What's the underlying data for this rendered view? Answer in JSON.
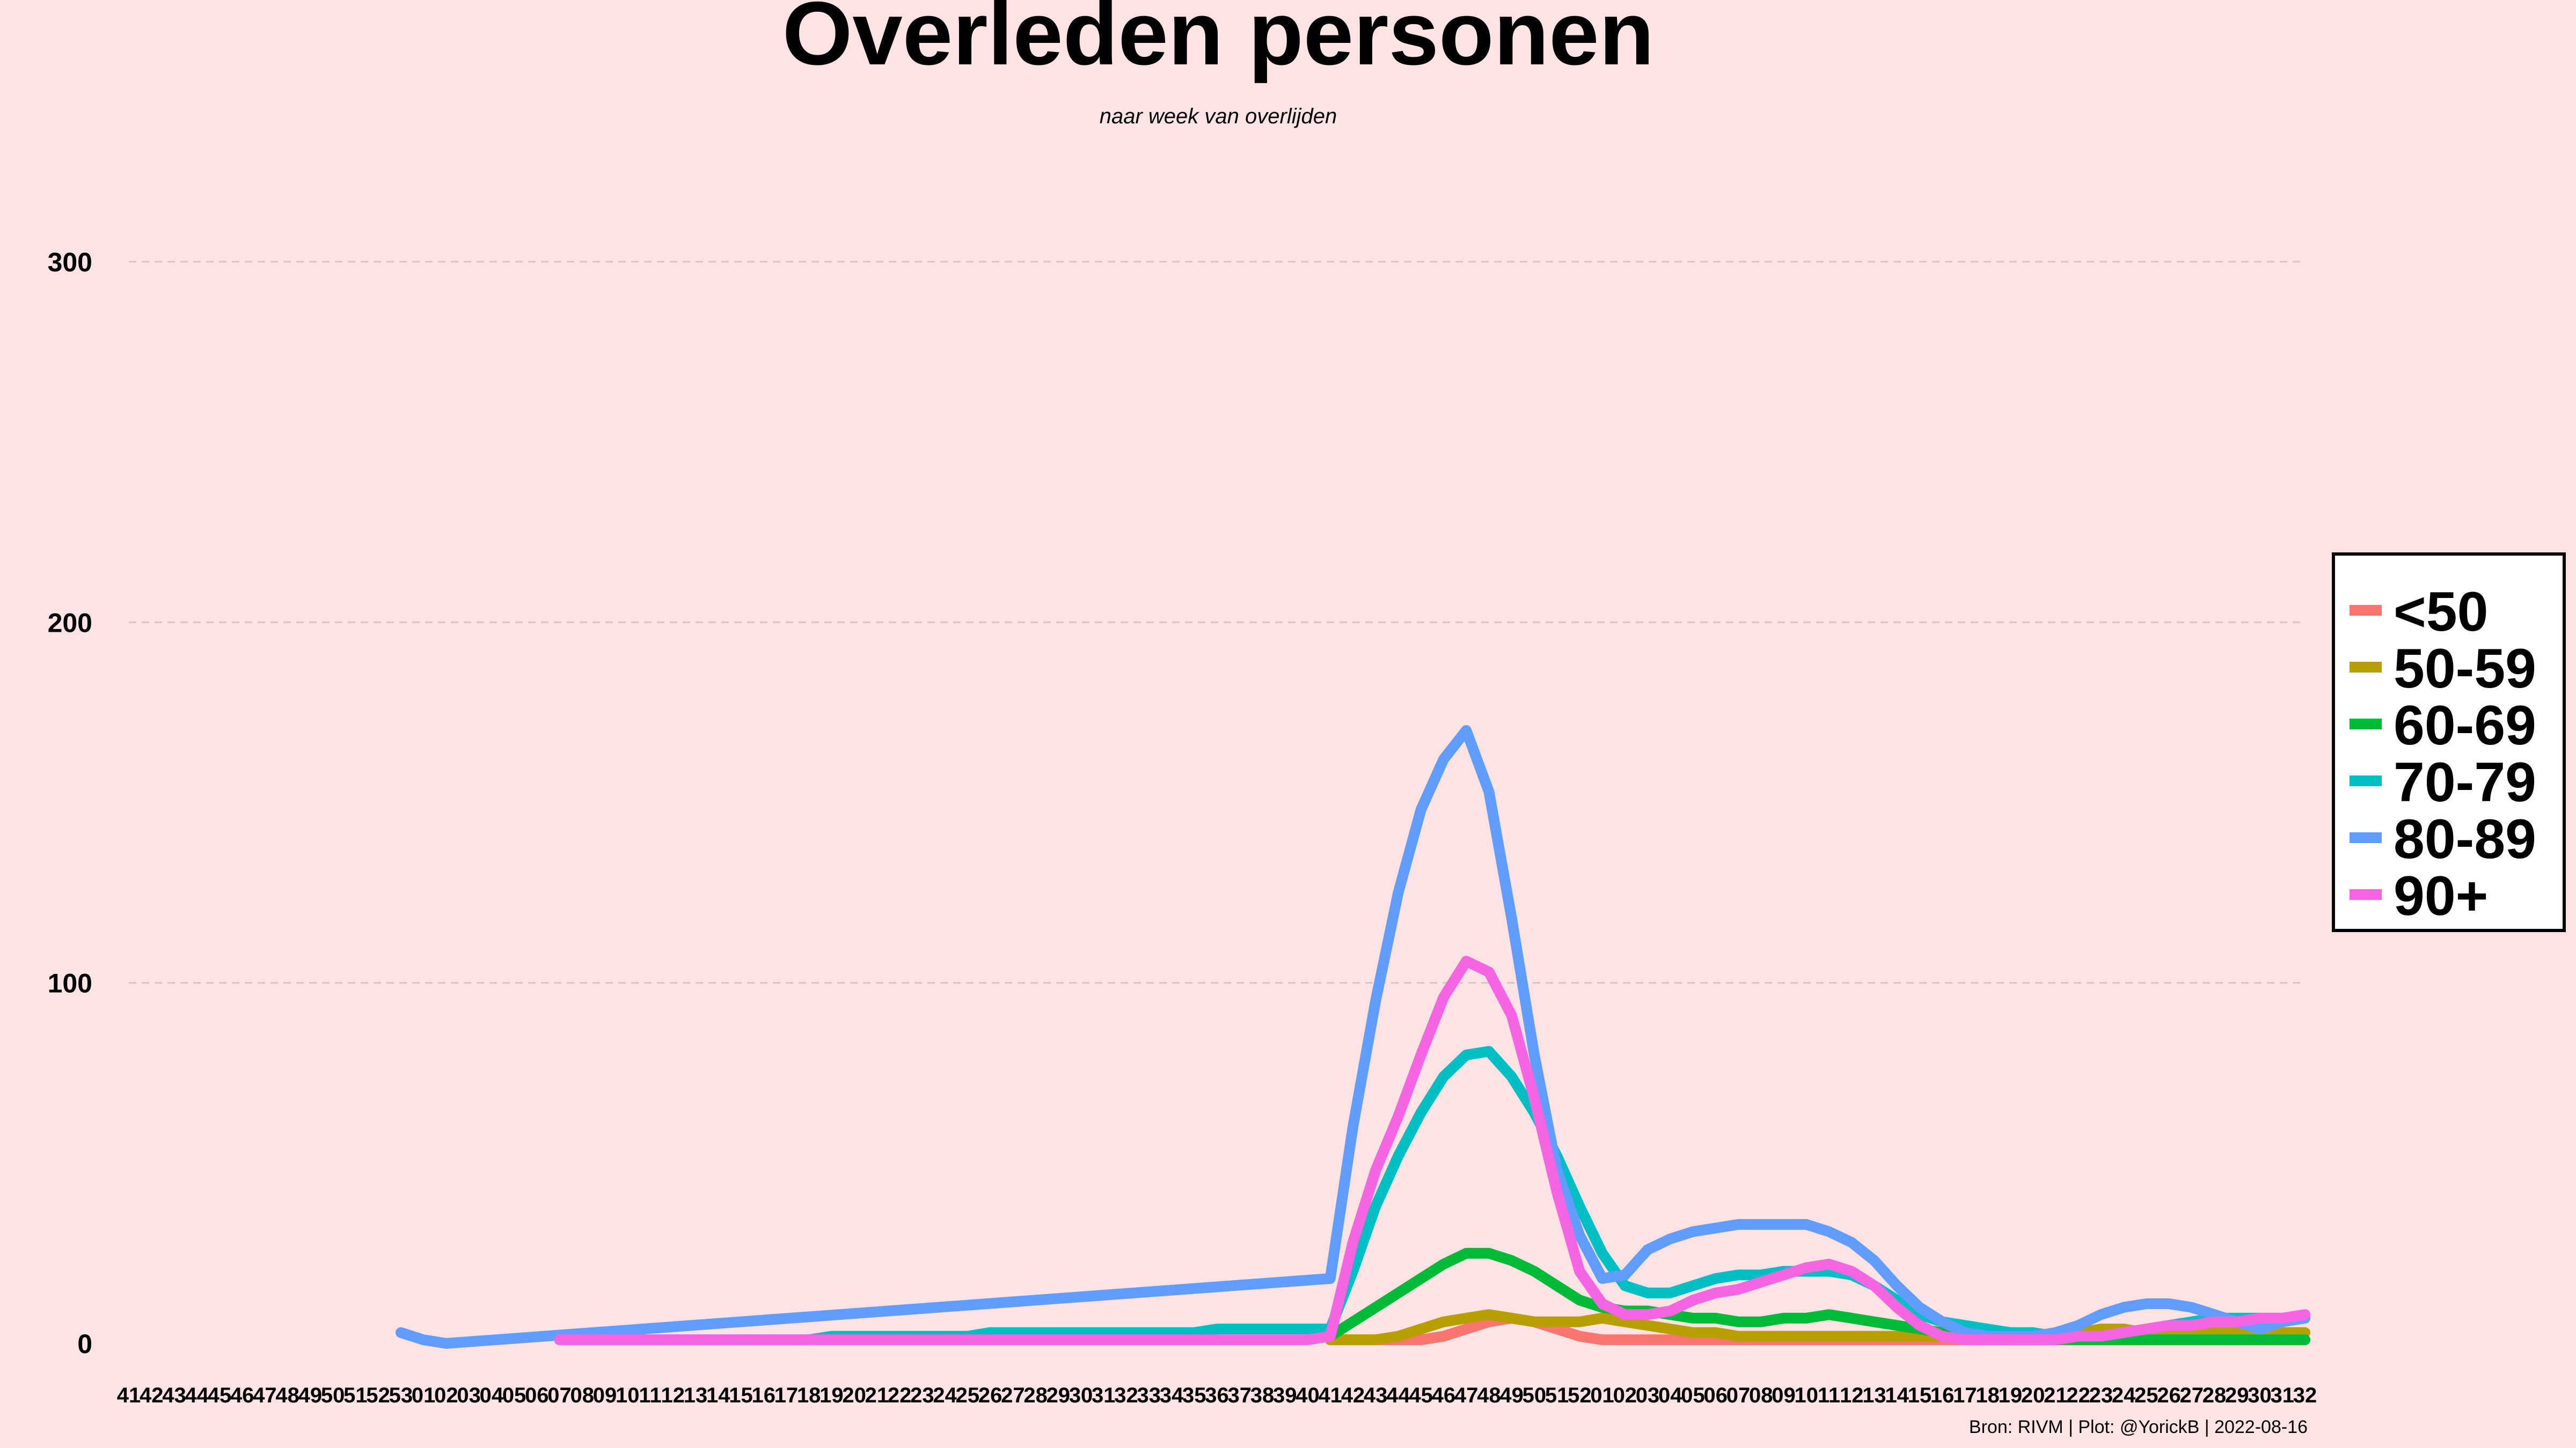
{
  "chart_data": {
    "type": "line",
    "title": "Overleden personen",
    "subtitle": "naar week van overlijden",
    "caption": "Bron: RIVM | Plot: @YorickB |  2022-08-16",
    "ylim": [
      0,
      320
    ],
    "yticks": [
      0,
      100,
      200,
      300
    ],
    "grid": "horizontal dashed",
    "legend_position": "right",
    "x": [
      "41",
      "42",
      "43",
      "44",
      "45",
      "46",
      "47",
      "48",
      "49",
      "50",
      "51",
      "52",
      "53",
      "01",
      "02",
      "03",
      "04",
      "05",
      "06",
      "07",
      "08",
      "09",
      "10",
      "11",
      "12",
      "13",
      "14",
      "15",
      "16",
      "17",
      "18",
      "19",
      "20",
      "21",
      "22",
      "23",
      "24",
      "25",
      "26",
      "27",
      "28",
      "29",
      "30",
      "31",
      "32",
      "33",
      "34",
      "35",
      "36",
      "37",
      "38",
      "39",
      "40",
      "41",
      "42",
      "43",
      "44",
      "45",
      "46",
      "47",
      "48",
      "49",
      "50",
      "51",
      "52",
      "01",
      "02",
      "03",
      "04",
      "05",
      "06",
      "07",
      "08",
      "09",
      "10",
      "11",
      "12",
      "13",
      "14",
      "15",
      "16",
      "17",
      "18",
      "19",
      "20",
      "21",
      "22",
      "23",
      "24",
      "25",
      "26",
      "27",
      "28",
      "29",
      "30",
      "31",
      "32"
    ],
    "series": [
      {
        "name": "<50",
        "color": "#f8766d",
        "values": [
          null,
          null,
          null,
          null,
          null,
          null,
          null,
          null,
          null,
          null,
          null,
          null,
          null,
          null,
          null,
          null,
          null,
          null,
          null,
          null,
          null,
          null,
          null,
          null,
          null,
          null,
          null,
          null,
          null,
          null,
          null,
          null,
          null,
          null,
          null,
          null,
          null,
          null,
          null,
          null,
          null,
          null,
          null,
          null,
          null,
          null,
          null,
          null,
          null,
          null,
          null,
          null,
          null,
          1,
          1,
          1,
          1,
          1,
          2,
          4,
          6,
          7,
          6,
          4,
          2,
          1,
          1,
          1,
          1,
          1,
          1,
          1,
          1,
          1,
          1,
          1,
          1,
          1,
          1,
          1,
          1,
          1,
          1,
          1,
          1,
          1,
          1,
          1,
          1,
          1,
          1,
          1,
          1,
          1,
          1,
          1,
          1
        ]
      },
      {
        "name": "50-59",
        "color": "#b79f00",
        "values": [
          null,
          null,
          null,
          null,
          null,
          null,
          null,
          null,
          null,
          null,
          null,
          null,
          null,
          null,
          null,
          null,
          null,
          null,
          null,
          null,
          null,
          null,
          null,
          null,
          null,
          null,
          null,
          null,
          null,
          null,
          null,
          null,
          null,
          null,
          null,
          null,
          null,
          null,
          null,
          null,
          null,
          null,
          null,
          null,
          null,
          null,
          null,
          null,
          null,
          null,
          null,
          null,
          null,
          1,
          1,
          1,
          2,
          4,
          6,
          7,
          8,
          7,
          6,
          6,
          6,
          7,
          6,
          5,
          4,
          3,
          3,
          2,
          2,
          2,
          2,
          2,
          2,
          2,
          2,
          2,
          2,
          1,
          1,
          1,
          2,
          2,
          3,
          4,
          4,
          3,
          3,
          3,
          3,
          3,
          3,
          3,
          3
        ]
      },
      {
        "name": "60-69",
        "color": "#00ba38",
        "values": [
          null,
          null,
          null,
          null,
          null,
          null,
          null,
          null,
          null,
          null,
          null,
          null,
          null,
          null,
          null,
          null,
          null,
          null,
          null,
          null,
          null,
          null,
          null,
          null,
          null,
          null,
          null,
          null,
          null,
          null,
          null,
          null,
          null,
          null,
          null,
          null,
          null,
          null,
          null,
          null,
          null,
          null,
          null,
          null,
          null,
          null,
          null,
          null,
          null,
          null,
          null,
          null,
          null,
          2,
          6,
          10,
          14,
          18,
          22,
          25,
          25,
          23,
          20,
          16,
          12,
          10,
          9,
          9,
          8,
          7,
          7,
          6,
          6,
          7,
          7,
          8,
          7,
          6,
          5,
          4,
          3,
          2,
          1,
          1,
          1,
          1,
          1,
          1,
          1,
          1,
          1,
          1,
          1,
          1,
          1,
          1,
          1
        ]
      },
      {
        "name": "70-79",
        "color": "#00bfc4",
        "values": [
          null,
          null,
          null,
          null,
          null,
          null,
          null,
          null,
          null,
          null,
          null,
          null,
          null,
          null,
          null,
          null,
          null,
          null,
          null,
          1,
          1,
          1,
          1,
          1,
          1,
          1,
          1,
          1,
          1,
          1,
          1,
          2,
          2,
          2,
          2,
          2,
          2,
          2,
          3,
          3,
          3,
          3,
          3,
          3,
          3,
          3,
          3,
          3,
          4,
          4,
          4,
          4,
          4,
          4,
          20,
          38,
          52,
          64,
          74,
          80,
          81,
          74,
          64,
          52,
          38,
          25,
          16,
          14,
          14,
          16,
          18,
          19,
          19,
          20,
          20,
          20,
          19,
          16,
          12,
          8,
          6,
          5,
          4,
          3,
          3,
          2,
          2,
          2,
          3,
          4,
          5,
          6,
          7,
          7,
          7,
          7,
          7
        ]
      },
      {
        "name": "80-89",
        "color": "#619cff",
        "values": [
          null,
          null,
          null,
          null,
          null,
          null,
          null,
          null,
          null,
          null,
          null,
          null,
          3,
          1,
          0,
          null,
          null,
          null,
          null,
          null,
          null,
          null,
          null,
          null,
          null,
          null,
          null,
          null,
          null,
          null,
          null,
          null,
          null,
          null,
          null,
          null,
          null,
          null,
          null,
          null,
          null,
          null,
          null,
          null,
          null,
          null,
          null,
          null,
          null,
          null,
          null,
          null,
          null,
          18,
          60,
          95,
          125,
          148,
          162,
          170,
          153,
          118,
          80,
          48,
          30,
          18,
          19,
          26,
          29,
          31,
          32,
          33,
          33,
          33,
          33,
          31,
          28,
          23,
          16,
          10,
          6,
          3,
          2,
          2,
          2,
          3,
          5,
          8,
          10,
          11,
          11,
          10,
          8,
          6,
          4,
          6,
          7
        ]
      },
      {
        "name": "90+",
        "color": "#f564e3",
        "values": [
          null,
          null,
          null,
          null,
          null,
          null,
          null,
          null,
          null,
          null,
          null,
          null,
          null,
          null,
          null,
          null,
          null,
          null,
          null,
          1,
          1,
          1,
          1,
          1,
          1,
          1,
          1,
          1,
          1,
          1,
          1,
          1,
          1,
          1,
          1,
          1,
          1,
          1,
          1,
          1,
          1,
          1,
          1,
          1,
          1,
          1,
          1,
          1,
          1,
          1,
          1,
          1,
          1,
          2,
          28,
          48,
          63,
          80,
          96,
          106,
          103,
          91,
          68,
          42,
          20,
          11,
          8,
          8,
          9,
          12,
          14,
          15,
          17,
          19,
          21,
          22,
          20,
          16,
          10,
          5,
          2,
          1,
          1,
          1,
          1,
          1,
          2,
          2,
          3,
          4,
          5,
          5,
          6,
          6,
          7,
          7,
          8
        ]
      }
    ]
  }
}
